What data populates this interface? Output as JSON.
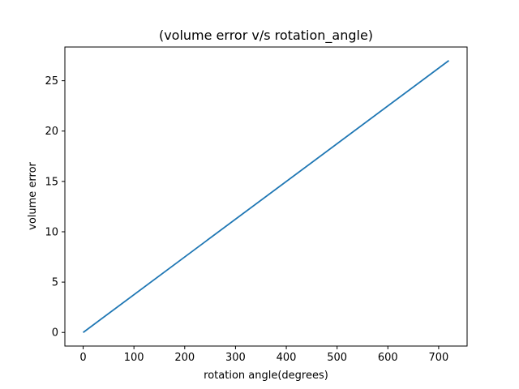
{
  "chart_data": {
    "type": "line",
    "title": "(volume error v/s rotation_angle)",
    "xlabel": "rotation angle(degrees)",
    "ylabel": "volume error",
    "xlim": [
      -36,
      756
    ],
    "ylim": [
      -1.35,
      28.35
    ],
    "xticks": [
      0,
      100,
      200,
      300,
      400,
      500,
      600,
      700
    ],
    "yticks": [
      0,
      5,
      10,
      15,
      20,
      25
    ],
    "grid": false,
    "series": [
      {
        "color": "#1f77b4",
        "x": [
          0,
          720
        ],
        "y": [
          0.0,
          27.0
        ]
      }
    ]
  }
}
